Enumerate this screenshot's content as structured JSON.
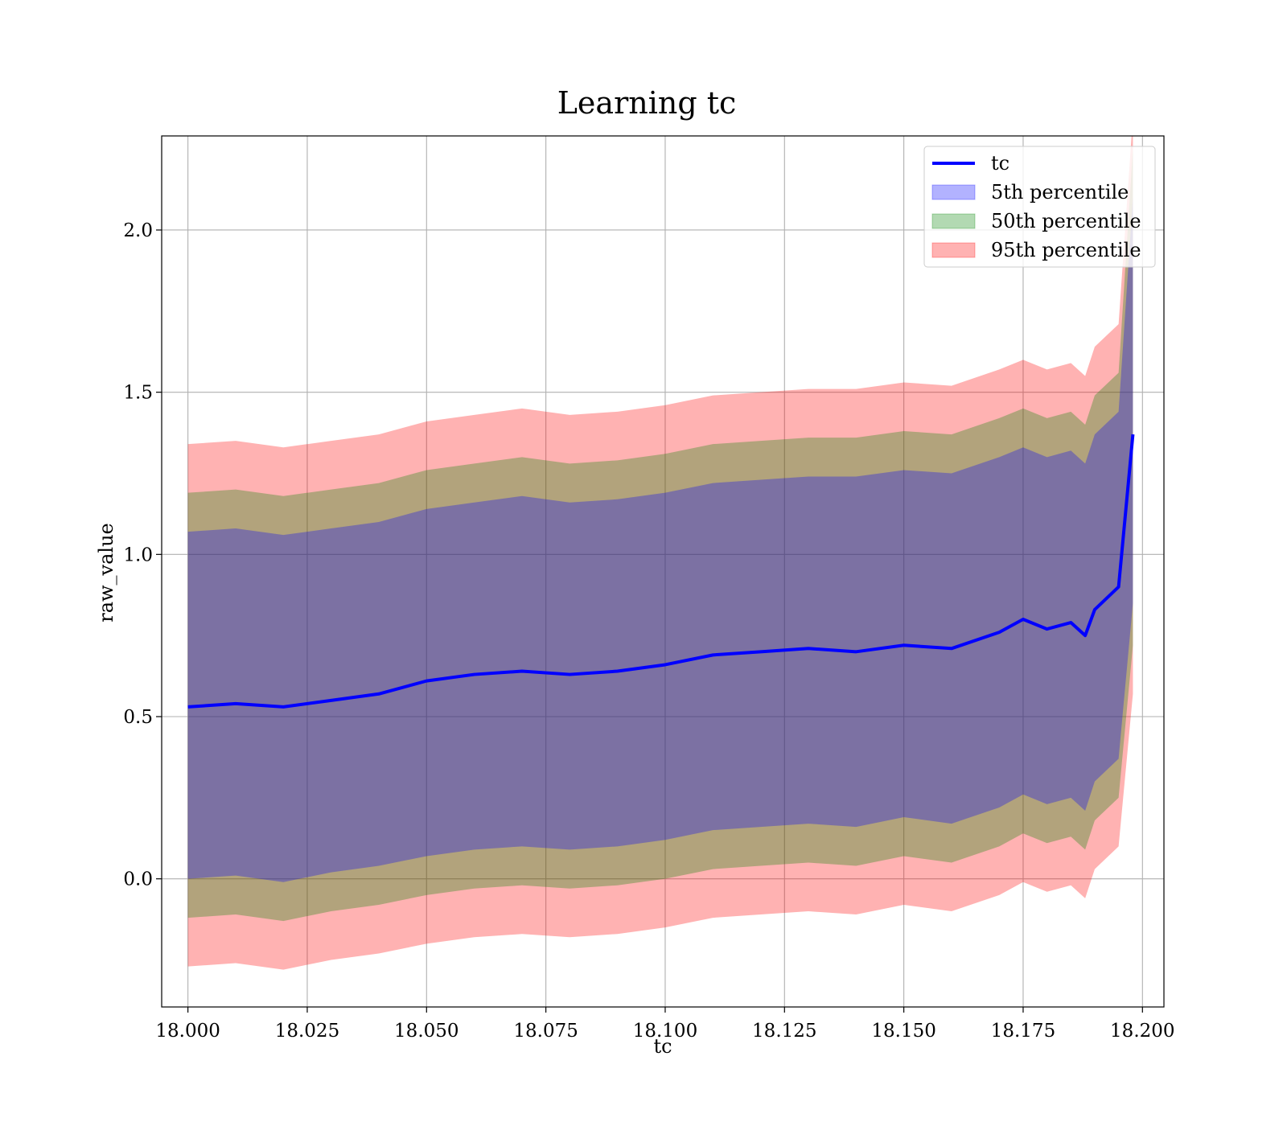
{
  "chart_data": {
    "type": "area",
    "title": "Learning tc",
    "xlabel": "tc",
    "ylabel": "raw_value",
    "xlim": [
      17.9945,
      18.2045
    ],
    "ylim": [
      -0.395,
      2.29
    ],
    "grid": true,
    "legend_position": "top-right",
    "x_ticks": [
      18.0,
      18.025,
      18.05,
      18.075,
      18.1,
      18.125,
      18.15,
      18.175,
      18.2
    ],
    "x_tick_labels": [
      "18.000",
      "18.025",
      "18.050",
      "18.075",
      "18.100",
      "18.125",
      "18.150",
      "18.175",
      "18.200"
    ],
    "y_ticks": [
      0.0,
      0.5,
      1.0,
      1.5,
      2.0
    ],
    "y_tick_labels": [
      "0.0",
      "0.5",
      "1.0",
      "1.5",
      "2.0"
    ],
    "legend": [
      {
        "label": "tc",
        "kind": "line",
        "color": "#0000ff"
      },
      {
        "label": "5th percentile",
        "kind": "band",
        "color": "#0000ff"
      },
      {
        "label": "50th percentile",
        "kind": "band",
        "color": "#008000"
      },
      {
        "label": "95th percentile",
        "kind": "band",
        "color": "#ff0000"
      }
    ],
    "x": [
      18.0,
      18.01,
      18.02,
      18.03,
      18.04,
      18.05,
      18.06,
      18.07,
      18.08,
      18.09,
      18.1,
      18.11,
      18.12,
      18.13,
      18.14,
      18.15,
      18.16,
      18.17,
      18.175,
      18.18,
      18.185,
      18.188,
      18.19,
      18.195,
      18.198
    ],
    "series": [
      {
        "name": "tc",
        "kind": "line",
        "color": "#0000ff",
        "values": [
          0.53,
          0.54,
          0.53,
          0.55,
          0.57,
          0.61,
          0.63,
          0.64,
          0.63,
          0.64,
          0.66,
          0.69,
          0.7,
          0.71,
          0.7,
          0.72,
          0.71,
          0.76,
          0.8,
          0.77,
          0.79,
          0.75,
          0.83,
          0.9,
          1.37
        ]
      },
      {
        "name": "5th percentile",
        "kind": "band",
        "color": "#0000ff",
        "opacity": 0.3,
        "upper": [
          1.07,
          1.08,
          1.06,
          1.08,
          1.1,
          1.14,
          1.16,
          1.18,
          1.16,
          1.17,
          1.19,
          1.22,
          1.23,
          1.24,
          1.24,
          1.26,
          1.25,
          1.3,
          1.33,
          1.3,
          1.32,
          1.28,
          1.37,
          1.44,
          2.1
        ],
        "lower": [
          0.0,
          0.01,
          -0.01,
          0.02,
          0.04,
          0.07,
          0.09,
          0.1,
          0.09,
          0.1,
          0.12,
          0.15,
          0.16,
          0.17,
          0.16,
          0.19,
          0.17,
          0.22,
          0.26,
          0.23,
          0.25,
          0.21,
          0.3,
          0.37,
          0.85
        ]
      },
      {
        "name": "50th percentile",
        "kind": "band",
        "color": "#008000",
        "opacity": 0.3,
        "upper": [
          1.19,
          1.2,
          1.18,
          1.2,
          1.22,
          1.26,
          1.28,
          1.3,
          1.28,
          1.29,
          1.31,
          1.34,
          1.35,
          1.36,
          1.36,
          1.38,
          1.37,
          1.42,
          1.45,
          1.42,
          1.44,
          1.4,
          1.49,
          1.56,
          2.25
        ],
        "lower": [
          -0.12,
          -0.11,
          -0.13,
          -0.1,
          -0.08,
          -0.05,
          -0.03,
          -0.02,
          -0.03,
          -0.02,
          0.0,
          0.03,
          0.04,
          0.05,
          0.04,
          0.07,
          0.05,
          0.1,
          0.14,
          0.11,
          0.13,
          0.09,
          0.18,
          0.25,
          0.72
        ]
      },
      {
        "name": "95th percentile",
        "kind": "band",
        "color": "#ff0000",
        "opacity": 0.3,
        "upper": [
          1.34,
          1.35,
          1.33,
          1.35,
          1.37,
          1.41,
          1.43,
          1.45,
          1.43,
          1.44,
          1.46,
          1.49,
          1.5,
          1.51,
          1.51,
          1.53,
          1.52,
          1.57,
          1.6,
          1.57,
          1.59,
          1.55,
          1.64,
          1.71,
          2.35
        ],
        "lower": [
          -0.27,
          -0.26,
          -0.28,
          -0.25,
          -0.23,
          -0.2,
          -0.18,
          -0.17,
          -0.18,
          -0.17,
          -0.15,
          -0.12,
          -0.11,
          -0.1,
          -0.11,
          -0.08,
          -0.1,
          -0.05,
          -0.01,
          -0.04,
          -0.02,
          -0.06,
          0.03,
          0.1,
          0.57
        ]
      }
    ]
  }
}
